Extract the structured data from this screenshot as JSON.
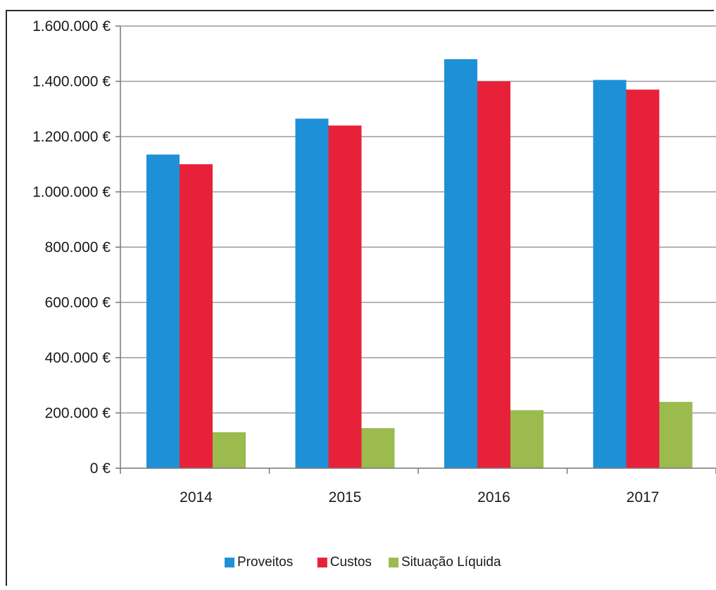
{
  "chart_data": {
    "type": "bar",
    "categories": [
      "2014",
      "2015",
      "2016",
      "2017"
    ],
    "series": [
      {
        "name": "Proveitos",
        "color": "#1e90d8",
        "values": [
          1135000,
          1265000,
          1480000,
          1405000
        ]
      },
      {
        "name": "Custos",
        "color": "#e8213b",
        "values": [
          1100000,
          1240000,
          1400000,
          1370000
        ]
      },
      {
        "name": "Situação Líquida",
        "color": "#9bbb4e",
        "values": [
          130000,
          145000,
          210000,
          240000
        ]
      }
    ],
    "ylim": [
      0,
      1600000
    ],
    "yticks": [
      {
        "value": 0,
        "label": "0 €"
      },
      {
        "value": 200000,
        "label": "200.000 €"
      },
      {
        "value": 400000,
        "label": "400.000 €"
      },
      {
        "value": 600000,
        "label": "600.000 €"
      },
      {
        "value": 800000,
        "label": "800.000 €"
      },
      {
        "value": 1000000,
        "label": "1.000.000 €"
      },
      {
        "value": 1200000,
        "label": "1.200.000 €"
      },
      {
        "value": 1400000,
        "label": "1.400.000 €"
      },
      {
        "value": 1600000,
        "label": "1.600.000 €"
      }
    ],
    "grid": true,
    "legend": "bottom-center"
  }
}
